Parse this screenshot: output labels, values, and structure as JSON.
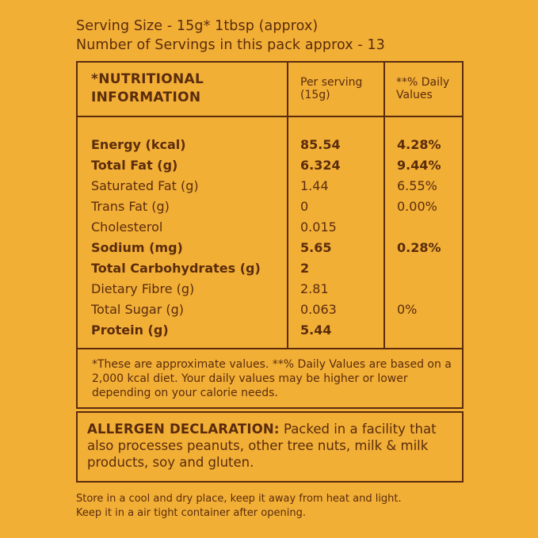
{
  "serving_info": {
    "serving_size": "Serving Size - 15g* 1tbsp (approx)",
    "servings_per_pack": "Number of Servings in this pack approx - 13"
  },
  "nutrition_table": {
    "header": {
      "title_line1": "*NUTRITIONAL",
      "title_line2": "INFORMATION",
      "per_serving_line1": "Per serving",
      "per_serving_line2": "(15g)",
      "daily_values_line1": "**% Daily",
      "daily_values_line2": "Values"
    },
    "rows": [
      {
        "name": "Energy (kcal)",
        "value": "85.54",
        "daily": "4.28%",
        "bold": true
      },
      {
        "name": "Total Fat (g)",
        "value": "6.324",
        "daily": "9.44%",
        "bold": true
      },
      {
        "name": "Saturated Fat (g)",
        "value": "1.44",
        "daily": "6.55%",
        "bold": false
      },
      {
        "name": "Trans Fat (g)",
        "value": "0",
        "daily": "0.00%",
        "bold": false
      },
      {
        "name": "Cholesterol",
        "value": "0.015",
        "daily": "",
        "bold": false
      },
      {
        "name": "Sodium (mg)",
        "value": "5.65",
        "daily": "0.28%",
        "bold": true
      },
      {
        "name": "Total Carbohydrates (g)",
        "value": "2",
        "daily": "",
        "bold": true
      },
      {
        "name": "Dietary Fibre (g)",
        "value": "2.81",
        "daily": "",
        "bold": false
      },
      {
        "name": "Total Sugar (g)",
        "value": "0.063",
        "daily": "0%",
        "bold": false
      },
      {
        "name": "Protein (g)",
        "value": "5.44",
        "daily": "",
        "bold": true
      }
    ],
    "footnote": "*These are approximate values. **% Daily Values are based on a 2,000 kcal diet. Your daily values may be higher or lower depending on your calorie needs."
  },
  "allergen": {
    "label": "ALLERGEN DECLARATION:",
    "text": " Packed in a facility that also processes peanuts, other tree nuts, milk & milk products, soy and gluten."
  },
  "storage": {
    "line1": "Store in a cool and dry place, keep it away from heat and light.",
    "line2": "Keep it in a air tight container after opening."
  },
  "colors": {
    "background": "#F2AF36",
    "text": "#5A2C0D",
    "border": "#5A2C0D"
  }
}
